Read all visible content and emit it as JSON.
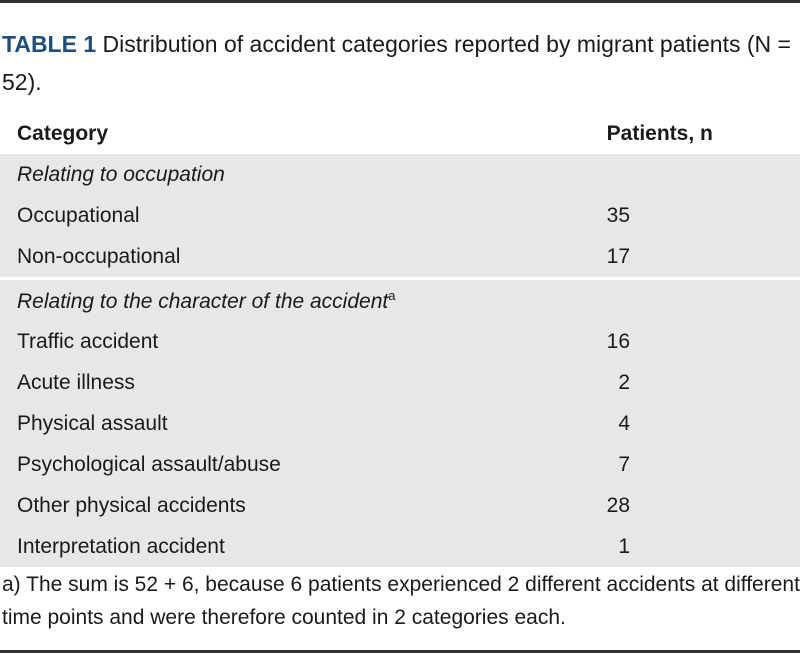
{
  "title": {
    "label": "TABLE 1",
    "text": "Distribution of accident categories reported by migrant patients (N = 52)."
  },
  "table": {
    "columns": [
      "Category",
      "Patients, n"
    ],
    "sections": [
      {
        "heading": "Relating to occupation",
        "rows": [
          [
            "Occupational",
            35
          ],
          [
            "Non-occupational",
            17
          ]
        ]
      },
      {
        "heading": "Relating to the character of the accident",
        "heading_note": "a",
        "rows": [
          [
            "Traffic accident",
            16
          ],
          [
            "Acute illness",
            2
          ],
          [
            "Physical assault",
            4
          ],
          [
            "Psychological assault/abuse",
            7
          ],
          [
            "Other physical accidents",
            28
          ],
          [
            "Interpretation accident",
            1
          ]
        ]
      }
    ]
  },
  "footnote": "a) The sum is 52 + 6, because 6 patients experienced 2 different accidents at different time points and were therefore counted in 2 categories each."
}
